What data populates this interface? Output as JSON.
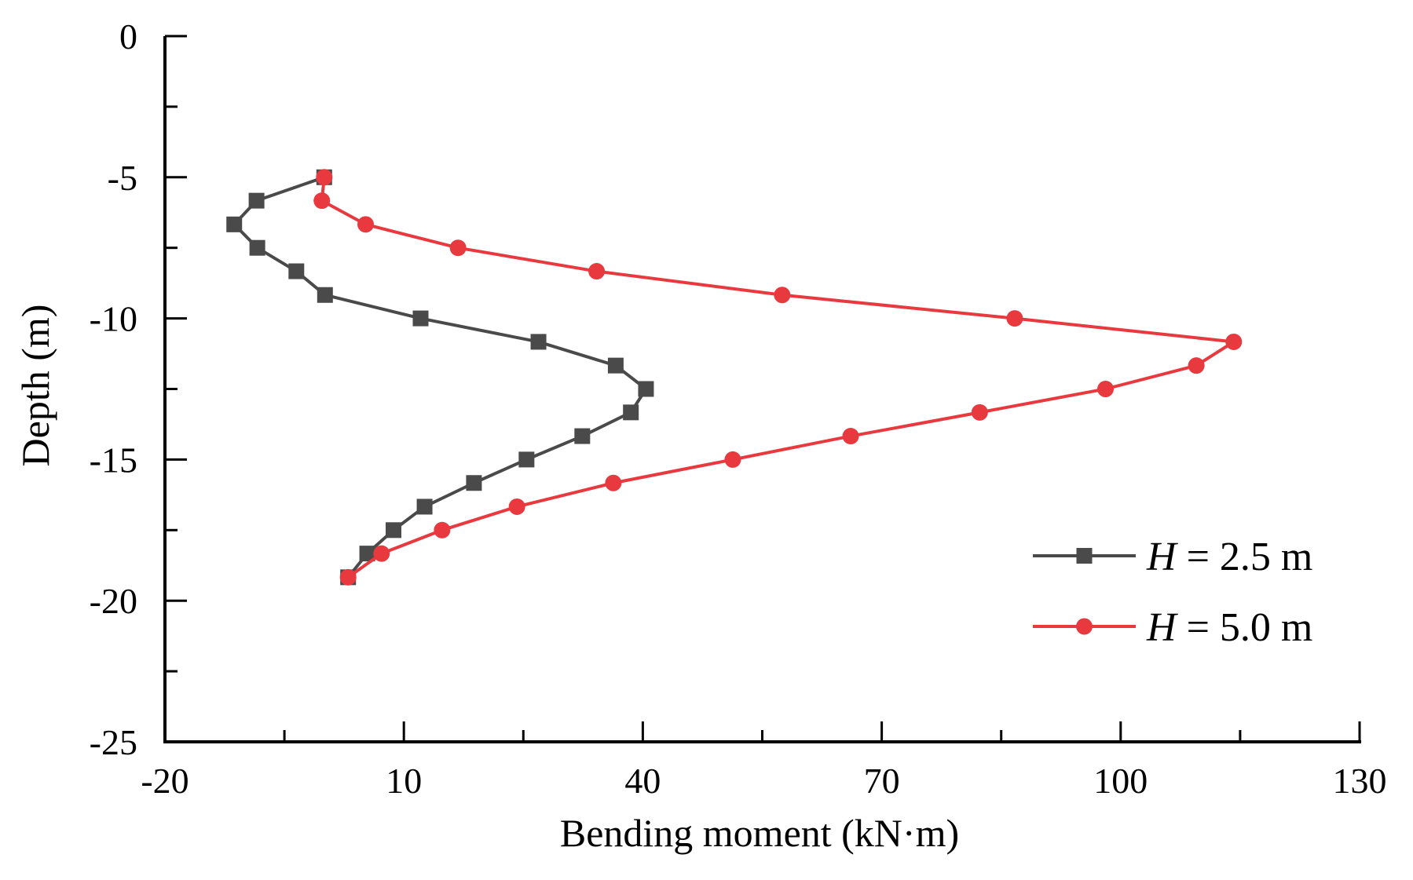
{
  "chart_data": {
    "type": "line",
    "title": "",
    "xlabel": "Bending moment (kN·m)",
    "ylabel": "Depth (m)",
    "xlim": [
      -20,
      130
    ],
    "ylim": [
      -25,
      0
    ],
    "xticks": [
      -20,
      10,
      40,
      70,
      100,
      130
    ],
    "yticks": [
      0,
      -5,
      -10,
      -15,
      -20,
      -25
    ],
    "xtick_labels": [
      "-20",
      "10",
      "40",
      "70",
      "100",
      "130"
    ],
    "ytick_labels": [
      "0",
      "-5",
      "-10",
      "-15",
      "-20",
      "-25"
    ],
    "grid": false,
    "legend_position": "bottom-right",
    "series": [
      {
        "name": "H = 2.5 m",
        "name_var": "H",
        "name_rest": " = 2.5 m",
        "color": "#4a4a4a",
        "marker": "square",
        "x": [
          0,
          -8.5,
          -11.3,
          -8.4,
          -3.5,
          0.1,
          12.1,
          26.9,
          36.6,
          40.4,
          38.5,
          32.4,
          25.4,
          18.8,
          12.6,
          8.7,
          5.4,
          3.0
        ],
        "y": [
          -5,
          -5.83,
          -6.67,
          -7.5,
          -8.33,
          -9.17,
          -10,
          -10.83,
          -11.67,
          -12.5,
          -13.33,
          -14.17,
          -15,
          -15.83,
          -16.67,
          -17.5,
          -18.33,
          -19.17
        ]
      },
      {
        "name": "H = 5.0 m",
        "name_var": "H",
        "name_rest": " = 5.0 m",
        "color": "#e8393f",
        "marker": "circle",
        "x": [
          0,
          -0.3,
          5.2,
          16.8,
          34.2,
          57.5,
          86.7,
          114.2,
          109.5,
          98.1,
          82.3,
          66.1,
          51.3,
          36.3,
          24.2,
          14.8,
          7.2,
          3.0
        ],
        "y": [
          -5,
          -5.83,
          -6.67,
          -7.5,
          -8.33,
          -9.17,
          -10,
          -10.83,
          -11.67,
          -12.5,
          -13.33,
          -14.17,
          -15,
          -15.83,
          -16.67,
          -17.5,
          -18.33,
          -19.17
        ]
      }
    ]
  }
}
